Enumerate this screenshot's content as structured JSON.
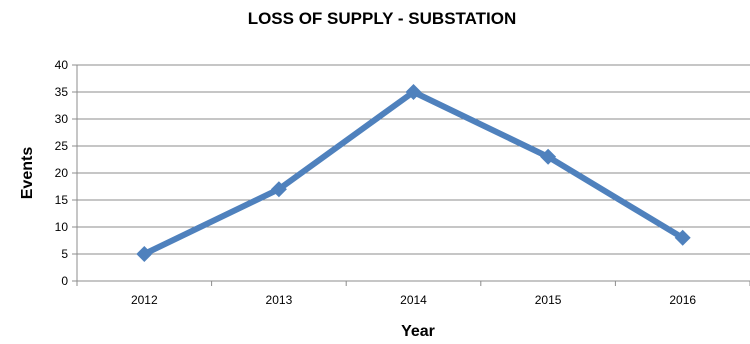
{
  "chart_data": {
    "type": "line",
    "title": "LOSS OF SUPPLY - SUBSTATION",
    "xlabel": "Year",
    "ylabel": "Events",
    "categories": [
      "2012",
      "2013",
      "2014",
      "2015",
      "2016"
    ],
    "series": [
      {
        "values": [
          5,
          17,
          35,
          23,
          8
        ],
        "color": "#4f81bd",
        "marker": "diamond"
      }
    ],
    "ylim": [
      0,
      40
    ],
    "yticks": [
      0,
      5,
      10,
      15,
      20,
      25,
      30,
      35,
      40
    ],
    "grid": true,
    "legend": "none"
  }
}
